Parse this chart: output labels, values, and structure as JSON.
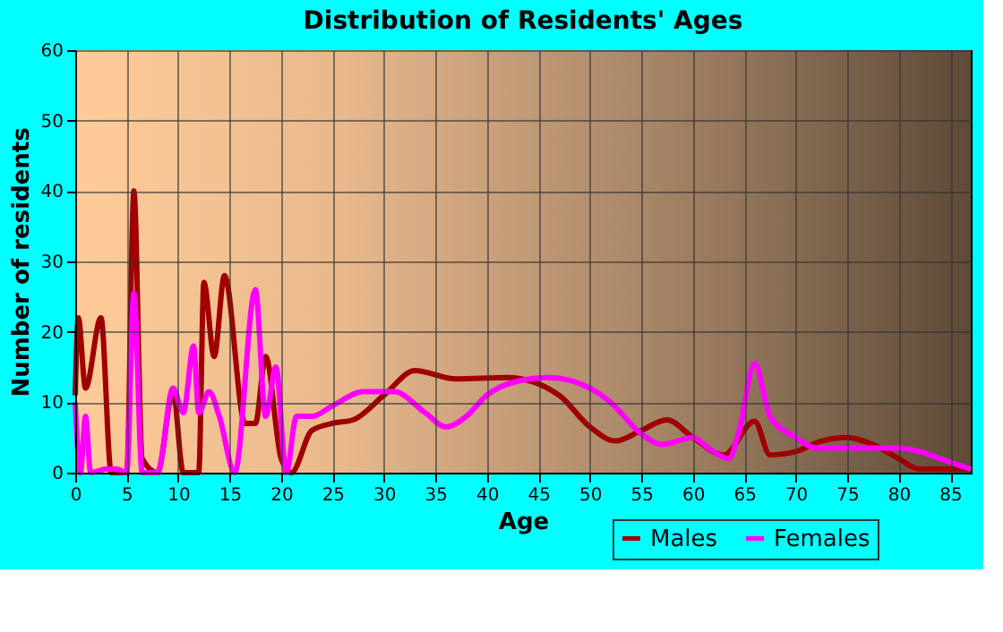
{
  "chart_data": {
    "type": "line",
    "title": "Distribution of Residents' Ages",
    "xlabel": "Age",
    "ylabel": "Number of residents",
    "xlim": [
      0,
      87
    ],
    "xticks": [
      0,
      5,
      10,
      15,
      20,
      25,
      30,
      35,
      40,
      45,
      50,
      55,
      60,
      65,
      70,
      75,
      80,
      85
    ],
    "ylim": [
      0,
      60
    ],
    "yticks": [
      0,
      10,
      20,
      30,
      40,
      50,
      60
    ],
    "grid": true,
    "legend": "bottom right",
    "series": [
      {
        "name": "Males",
        "color": "#a00000",
        "x": [
          0,
          0.3,
          1,
          2.5,
          3.5,
          5,
          5.7,
          6.5,
          8,
          9.5,
          10.5,
          12,
          12.5,
          13.5,
          14.5,
          16.5,
          17.5,
          18.5,
          20,
          21,
          23,
          25,
          27,
          30,
          33,
          37,
          42,
          47,
          50,
          52.5,
          55,
          57.5,
          60,
          63,
          66,
          67.5,
          70,
          72.5,
          75,
          77.5,
          80,
          82,
          85,
          87
        ],
        "values": [
          11,
          22,
          12,
          22,
          0,
          0,
          40,
          2,
          0,
          11.5,
          0,
          0,
          27,
          16.5,
          28,
          7,
          7,
          16.5,
          2,
          0,
          6,
          7,
          7.5,
          11,
          14.5,
          13.3,
          13.5,
          11,
          6.5,
          4.5,
          6,
          7.5,
          5,
          2.5,
          7.3,
          2.5,
          3,
          4.5,
          5,
          4,
          2,
          0.5,
          0.5,
          0.5
        ]
      },
      {
        "name": "Females",
        "color": "#ff00ff",
        "x": [
          0,
          0.5,
          1,
          1.5,
          3,
          4,
          5,
          5.7,
          6.5,
          8,
          9.5,
          10.5,
          11.5,
          12,
          13,
          14,
          15.5,
          17.5,
          18.5,
          19.5,
          20.5,
          21.5,
          23,
          25,
          28,
          31,
          34,
          36,
          38,
          40,
          43,
          46,
          50,
          52,
          55,
          57,
          60,
          61.5,
          63.5,
          64.5,
          66,
          67.5,
          70,
          72,
          75,
          80,
          82,
          84,
          87
        ],
        "values": [
          10,
          0,
          8,
          0,
          0.5,
          0.5,
          0,
          25.5,
          0,
          0,
          12,
          8.5,
          18,
          8.5,
          11.5,
          8,
          0,
          26,
          8,
          15,
          0,
          8,
          8,
          9.5,
          11.5,
          11.5,
          8.5,
          6.5,
          8,
          11,
          13,
          13.5,
          12,
          10,
          5.5,
          4,
          5,
          3.5,
          2,
          6,
          15.5,
          8,
          5,
          3.5,
          3.5,
          3.5,
          3,
          2,
          0.5
        ]
      }
    ]
  }
}
